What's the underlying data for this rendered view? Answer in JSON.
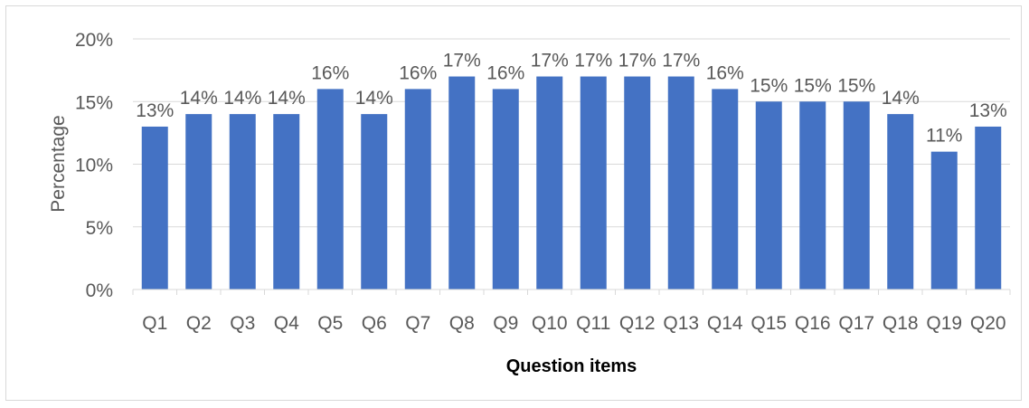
{
  "chart_data": {
    "type": "bar",
    "title": "",
    "xlabel": "Question items",
    "ylabel": "Percentage",
    "ylim": [
      0,
      20
    ],
    "yticks": [
      "0%",
      "5%",
      "10%",
      "15%",
      "20%"
    ],
    "categories": [
      "Q1",
      "Q2",
      "Q3",
      "Q4",
      "Q5",
      "Q6",
      "Q7",
      "Q8",
      "Q9",
      "Q10",
      "Q11",
      "Q12",
      "Q13",
      "Q14",
      "Q15",
      "Q16",
      "Q17",
      "Q18",
      "Q19",
      "Q20"
    ],
    "values": [
      13,
      14,
      14,
      14,
      16,
      14,
      16,
      17,
      16,
      17,
      17,
      17,
      17,
      16,
      15,
      15,
      15,
      14,
      11,
      13
    ],
    "data_labels": [
      "13%",
      "14%",
      "14%",
      "14%",
      "16%",
      "14%",
      "16%",
      "17%",
      "16%",
      "17%",
      "17%",
      "17%",
      "17%",
      "16%",
      "15%",
      "15%",
      "15%",
      "14%",
      "11%",
      "13%"
    ],
    "bar_color": "#4472c4",
    "grid": true,
    "grid_color": "#d9d9d9",
    "legend": "none"
  }
}
